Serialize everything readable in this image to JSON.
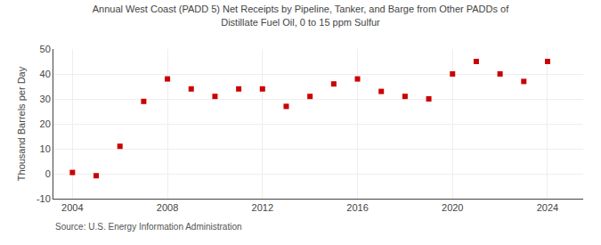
{
  "chart_data": {
    "type": "scatter",
    "title": "Annual West Coast (PADD 5) Net Receipts by Pipeline, Tanker, and Barge from Other PADDs of\nDistillate Fuel Oil, 0 to 15 ppm Sulfur",
    "ylabel": "Thousand Barrels per Day",
    "annotations": [
      "Source: U.S. Energy Information Administration"
    ],
    "x": [
      2004,
      2005,
      2006,
      2007,
      2008,
      2009,
      2010,
      2011,
      2012,
      2013,
      2014,
      2015,
      2016,
      2017,
      2018,
      2019,
      2020,
      2021,
      2022,
      2023,
      2024
    ],
    "values": [
      0.5,
      -0.8,
      11.0,
      29.0,
      38.0,
      34.0,
      31.0,
      34.0,
      34.0,
      27.0,
      31.0,
      36.0,
      38.0,
      33.0,
      31.0,
      30.0,
      40.0,
      45.0,
      40.0,
      37.0,
      45.0
    ],
    "color": "#cc0000",
    "marker": "square",
    "xlim": [
      2003.2,
      2025.5
    ],
    "xticks": [
      2004,
      2008,
      2012,
      2016,
      2020,
      2024
    ],
    "ylim": [
      -10,
      50
    ],
    "yticks": [
      -10,
      0,
      10,
      20,
      30,
      40,
      50
    ],
    "grid": true
  }
}
